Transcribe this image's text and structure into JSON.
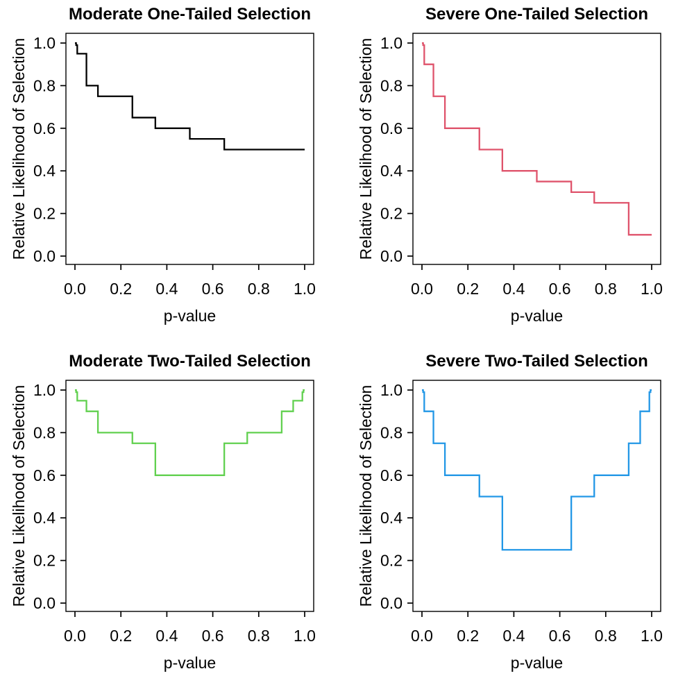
{
  "figure": {
    "background": "#ffffff",
    "layout": "2x2 grid of step-function plots"
  },
  "chart_data": [
    {
      "type": "line",
      "subtype": "step",
      "title": "Moderate One-Tailed Selection",
      "xlabel": "p-value",
      "ylabel": "Relative Likelihood of Selection",
      "color": "#000000",
      "xlim": [
        0,
        1
      ],
      "ylim": [
        0,
        1
      ],
      "grid": "off",
      "xticks": [
        "0.0",
        "0.2",
        "0.4",
        "0.6",
        "0.8",
        "1.0"
      ],
      "yticks": [
        "0.0",
        "0.2",
        "0.4",
        "0.6",
        "0.8",
        "1.0"
      ],
      "xtick_values": [
        0,
        0.2,
        0.4,
        0.6,
        0.8,
        1.0
      ],
      "ytick_values": [
        0,
        0.2,
        0.4,
        0.6,
        0.8,
        1.0
      ],
      "cutpoints": [
        0,
        0.005,
        0.01,
        0.05,
        0.1,
        0.25,
        0.35,
        0.5,
        0.65,
        0.75,
        0.9,
        0.95,
        0.99,
        0.995,
        1.0
      ],
      "weights": [
        1.0,
        0.99,
        0.95,
        0.8,
        0.75,
        0.65,
        0.6,
        0.55,
        0.5,
        0.5,
        0.5,
        0.5,
        0.5,
        0.5
      ]
    },
    {
      "type": "line",
      "subtype": "step",
      "title": "Severe One-Tailed Selection",
      "xlabel": "p-value",
      "ylabel": "Relative Likelihood of Selection",
      "color": "#DF536B",
      "xlim": [
        0,
        1
      ],
      "ylim": [
        0,
        1
      ],
      "grid": "off",
      "xticks": [
        "0.0",
        "0.2",
        "0.4",
        "0.6",
        "0.8",
        "1.0"
      ],
      "yticks": [
        "0.0",
        "0.2",
        "0.4",
        "0.6",
        "0.8",
        "1.0"
      ],
      "xtick_values": [
        0,
        0.2,
        0.4,
        0.6,
        0.8,
        1.0
      ],
      "ytick_values": [
        0,
        0.2,
        0.4,
        0.6,
        0.8,
        1.0
      ],
      "cutpoints": [
        0,
        0.005,
        0.01,
        0.05,
        0.1,
        0.25,
        0.35,
        0.5,
        0.65,
        0.75,
        0.9,
        0.95,
        0.99,
        0.995,
        1.0
      ],
      "weights": [
        1.0,
        0.99,
        0.9,
        0.75,
        0.6,
        0.5,
        0.4,
        0.35,
        0.3,
        0.25,
        0.1,
        0.1,
        0.1,
        0.1
      ]
    },
    {
      "type": "line",
      "subtype": "step",
      "title": "Moderate Two-Tailed Selection",
      "xlabel": "p-value",
      "ylabel": "Relative Likelihood of Selection",
      "color": "#61D04F",
      "xlim": [
        0,
        1
      ],
      "ylim": [
        0,
        1
      ],
      "grid": "off",
      "xticks": [
        "0.0",
        "0.2",
        "0.4",
        "0.6",
        "0.8",
        "1.0"
      ],
      "yticks": [
        "0.0",
        "0.2",
        "0.4",
        "0.6",
        "0.8",
        "1.0"
      ],
      "xtick_values": [
        0,
        0.2,
        0.4,
        0.6,
        0.8,
        1.0
      ],
      "ytick_values": [
        0,
        0.2,
        0.4,
        0.6,
        0.8,
        1.0
      ],
      "cutpoints": [
        0,
        0.005,
        0.01,
        0.05,
        0.1,
        0.25,
        0.35,
        0.5,
        0.65,
        0.75,
        0.9,
        0.95,
        0.99,
        0.995,
        1.0
      ],
      "weights": [
        1.0,
        0.99,
        0.95,
        0.9,
        0.8,
        0.75,
        0.6,
        0.6,
        0.75,
        0.8,
        0.9,
        0.95,
        0.99,
        1.0
      ]
    },
    {
      "type": "line",
      "subtype": "step",
      "title": "Severe Two-Tailed Selection",
      "xlabel": "p-value",
      "ylabel": "Relative Likelihood of Selection",
      "color": "#2297E6",
      "xlim": [
        0,
        1
      ],
      "ylim": [
        0,
        1
      ],
      "grid": "off",
      "xticks": [
        "0.0",
        "0.2",
        "0.4",
        "0.6",
        "0.8",
        "1.0"
      ],
      "yticks": [
        "0.0",
        "0.2",
        "0.4",
        "0.6",
        "0.8",
        "1.0"
      ],
      "xtick_values": [
        0,
        0.2,
        0.4,
        0.6,
        0.8,
        1.0
      ],
      "ytick_values": [
        0,
        0.2,
        0.4,
        0.6,
        0.8,
        1.0
      ],
      "cutpoints": [
        0,
        0.005,
        0.01,
        0.05,
        0.1,
        0.25,
        0.35,
        0.5,
        0.65,
        0.75,
        0.9,
        0.95,
        0.99,
        0.995,
        1.0
      ],
      "weights": [
        1.0,
        0.99,
        0.9,
        0.75,
        0.6,
        0.5,
        0.25,
        0.25,
        0.5,
        0.6,
        0.75,
        0.9,
        0.99,
        1.0
      ]
    }
  ]
}
